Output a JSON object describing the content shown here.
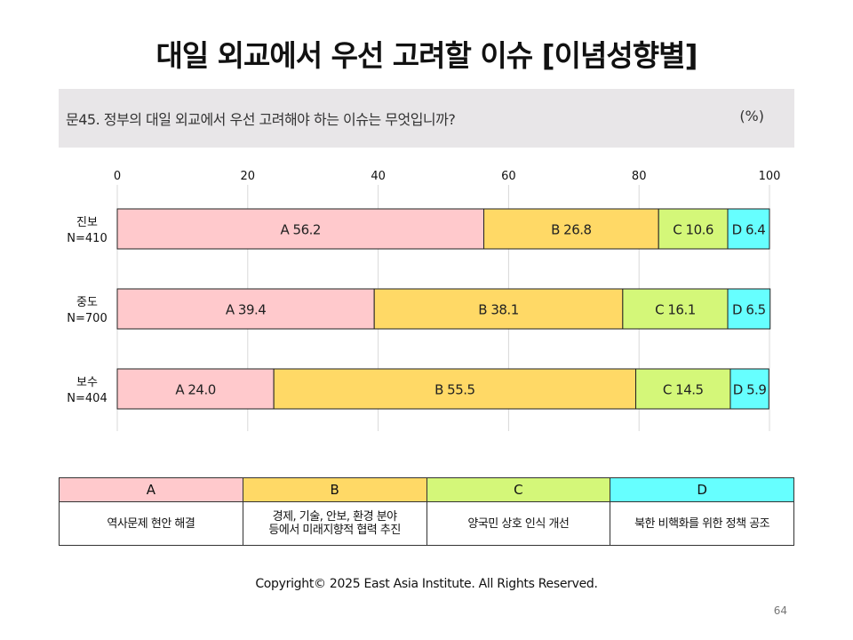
{
  "title": "대일 외교에서 우선 고려할 이슈 [이념성향별]",
  "question": {
    "text": "문45. 정부의 대일 외교에서 우선 고려해야 하는 이슈는 무엇입니까?",
    "unit": "(%)"
  },
  "chart_data": {
    "type": "bar",
    "orientation": "horizontal",
    "stacked": true,
    "xlim": [
      0,
      100
    ],
    "x_ticks": [
      0,
      20,
      40,
      60,
      80,
      100
    ],
    "grid": true,
    "categories": [
      {
        "label": "진보",
        "n": "N=410"
      },
      {
        "label": "중도",
        "n": "N=700"
      },
      {
        "label": "보수",
        "n": "N=404"
      }
    ],
    "series": [
      {
        "name": "A",
        "color": "#ffc9cc",
        "values": [
          56.2,
          39.4,
          24.0
        ],
        "labels": [
          "A 56.2",
          "A 39.4",
          "A 24.0"
        ]
      },
      {
        "name": "B",
        "color": "#ffd966",
        "values": [
          26.8,
          38.1,
          55.5
        ],
        "labels": [
          "B 26.8",
          "B 38.1",
          "B 55.5"
        ]
      },
      {
        "name": "C",
        "color": "#d4f779",
        "values": [
          10.6,
          16.1,
          14.5
        ],
        "labels": [
          "C 10.6",
          "C 16.1",
          "C 14.5"
        ]
      },
      {
        "name": "D",
        "color": "#66ffff",
        "values": [
          6.4,
          6.5,
          5.9
        ],
        "labels": [
          "D 6.4",
          "D 6.5",
          "D 5.9"
        ]
      }
    ]
  },
  "legend": {
    "headers": [
      {
        "key": "A",
        "color": "#ffc9cc"
      },
      {
        "key": "B",
        "color": "#ffd966"
      },
      {
        "key": "C",
        "color": "#d4f779"
      },
      {
        "key": "D",
        "color": "#66ffff"
      }
    ],
    "descriptions": [
      [
        "역사문제 현안 해결"
      ],
      [
        "경제, 기술, 안보, 환경 분야",
        "등에서 미래지향적 협력 추진"
      ],
      [
        "양국민 상호 인식 개선"
      ],
      [
        "북한 비핵화를 위한 정책 공조"
      ]
    ]
  },
  "copyright": "Copyright© 2025 East Asia Institute. All Rights Reserved.",
  "page_number": "64"
}
